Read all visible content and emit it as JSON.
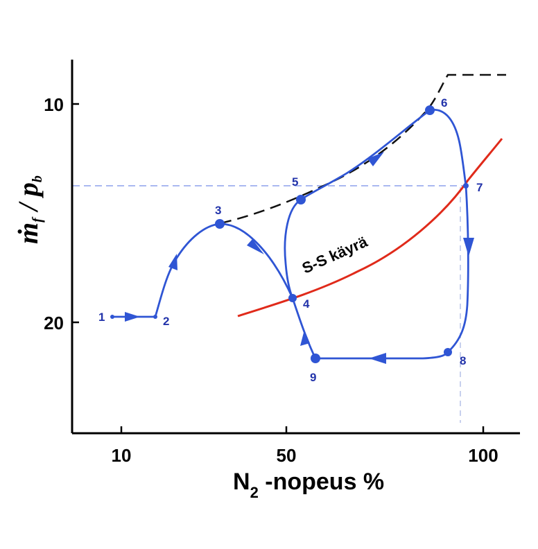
{
  "chart_data": {
    "type": "line",
    "x_axis": {
      "title_main": "N",
      "title_subscript": "2",
      "title_rest": " -nopeus  %",
      "ticks": [
        "10",
        "50",
        "100"
      ]
    },
    "y_axis": {
      "title_mdot": "ṁ",
      "title_f": "f",
      "title_slash": " / ",
      "title_p": "p",
      "title_b": "b",
      "ticks": [
        "10",
        "20"
      ],
      "inverted": true
    },
    "reference_lines": {
      "horizontal_level": "point 7",
      "vertical_level": "point 7"
    },
    "ss_curve": {
      "label": "S-S käyrä",
      "color": "#e02a1a"
    },
    "surge_line": {
      "color": "#111111",
      "style": "dashed"
    },
    "transient_path": {
      "color": "#2f55d4",
      "points": [
        {
          "label": "1"
        },
        {
          "label": "2"
        },
        {
          "label": "3"
        },
        {
          "label": "4"
        },
        {
          "label": "5"
        },
        {
          "label": "6"
        },
        {
          "label": "7"
        },
        {
          "label": "8"
        },
        {
          "label": "9"
        }
      ]
    },
    "colors": {
      "axis": "#000000",
      "reference": "#a9b8f0",
      "point_label": "#2233aa"
    }
  }
}
